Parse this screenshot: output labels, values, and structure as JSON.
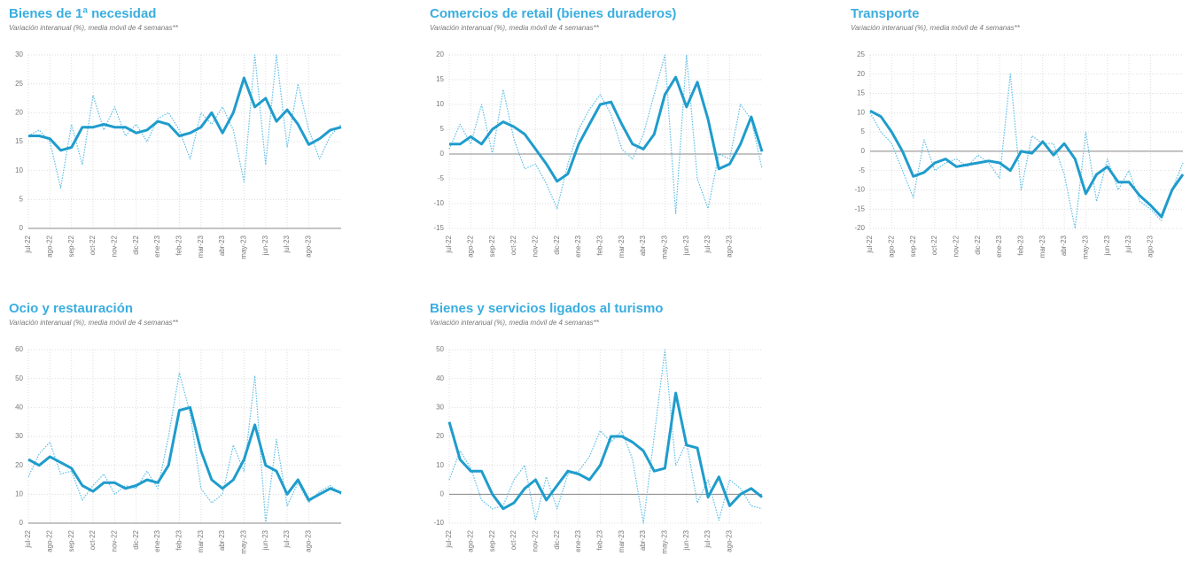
{
  "chart_data": [
    {
      "type": "line",
      "title": "Bienes de 1ª necesidad",
      "subtitle": "Variación interanual (%), media móvil de 4 semanas**",
      "categories": [
        "jul-22",
        null,
        "ago-22",
        null,
        "sep-22",
        null,
        "oct-22",
        null,
        "nov-22",
        null,
        "dic-22",
        null,
        "ene-23",
        null,
        "feb-23",
        null,
        "mar-23",
        null,
        "abr-23",
        null,
        "may-23",
        null,
        "jun-23",
        null,
        "jul-23",
        null,
        "ago-23",
        null,
        null,
        null
      ],
      "ylim": [
        0,
        30
      ],
      "yticks": [
        0,
        5,
        10,
        15,
        20,
        25,
        30
      ],
      "grid": true,
      "series": [
        {
          "color": "#5bbde6",
          "line_style": "dotted",
          "values": [
            16,
            17,
            15,
            7,
            18,
            11,
            23,
            17,
            21,
            16,
            18,
            15,
            19,
            20,
            17,
            12,
            20,
            18,
            21,
            17,
            8,
            30,
            11,
            30,
            14,
            25,
            17,
            12,
            16,
            18
          ]
        },
        {
          "color": "#1f9ccc",
          "line_style": "solid",
          "values": [
            16,
            16,
            15.5,
            13.5,
            14,
            17.5,
            17.5,
            18,
            17.5,
            17.5,
            16.5,
            17,
            18.5,
            18,
            16,
            16.5,
            17.5,
            20,
            16.5,
            20,
            26,
            21,
            22.5,
            18.5,
            20.5,
            18,
            14.5,
            15.5,
            17,
            17.5
          ]
        }
      ]
    },
    {
      "type": "line",
      "title": "Comercios de retail (bienes duraderos)",
      "subtitle": "Variación interanual (%), media móvil de 4 semanas**",
      "categories": [
        "jul-22",
        null,
        "ago-22",
        null,
        "sep-22",
        null,
        "oct-22",
        null,
        "nov-22",
        null,
        "dic-22",
        null,
        "ene-23",
        null,
        "feb-23",
        null,
        "mar-23",
        null,
        "abr-23",
        null,
        "may-23",
        null,
        "jun-23",
        null,
        "jul-23",
        null,
        "ago-23",
        null,
        null,
        null
      ],
      "ylim": [
        -15,
        20
      ],
      "yticks": [
        -15,
        -10,
        -5,
        0,
        5,
        10,
        15,
        20
      ],
      "grid": true,
      "series": [
        {
          "color": "#5bbde6",
          "line_style": "dotted",
          "values": [
            1,
            6,
            2,
            10,
            0,
            13,
            3,
            -3,
            -2,
            -6,
            -11,
            -2,
            5,
            9,
            12,
            8,
            1,
            -1,
            4,
            12,
            20,
            -12,
            20,
            -5,
            -11,
            0,
            -1,
            10,
            7,
            -3
          ]
        },
        {
          "color": "#1f9ccc",
          "line_style": "solid",
          "values": [
            2,
            2,
            3.5,
            2,
            5,
            6.5,
            5.5,
            4,
            1,
            -2,
            -5.5,
            -4,
            2,
            6,
            10,
            10.5,
            6,
            2,
            1,
            4,
            12,
            15.5,
            9.5,
            14.5,
            7,
            -3,
            -2,
            2,
            7.5,
            0.5
          ]
        }
      ]
    },
    {
      "type": "line",
      "title": "Transporte",
      "subtitle": "Variación interanual (%), media móvil de 4 semanas**",
      "categories": [
        "jul-22",
        null,
        "ago-22",
        null,
        "sep-22",
        null,
        "oct-22",
        null,
        "nov-22",
        null,
        "dic-22",
        null,
        "ene-23",
        null,
        "feb-23",
        null,
        "mar-23",
        null,
        "abr-23",
        null,
        "may-23",
        null,
        "jun-23",
        null,
        "jul-23",
        null,
        "ago-23",
        null,
        null,
        null
      ],
      "ylim": [
        -20,
        25
      ],
      "yticks": [
        -20,
        -15,
        -10,
        -5,
        0,
        5,
        10,
        15,
        20,
        25
      ],
      "grid": true,
      "series": [
        {
          "color": "#5bbde6",
          "line_style": "dotted",
          "values": [
            10,
            5,
            2,
            -5,
            -12,
            3,
            -5,
            -3,
            -2,
            -4,
            -1,
            -3,
            -7,
            20,
            -10,
            4,
            2,
            2,
            -6,
            -20,
            5,
            -13,
            -2,
            -10,
            -5,
            -13,
            -15,
            -18,
            -10,
            -3
          ]
        },
        {
          "color": "#1f9ccc",
          "line_style": "solid",
          "values": [
            10.5,
            9,
            5,
            0,
            -6.5,
            -5.5,
            -3,
            -2,
            -4,
            -3.5,
            -3,
            -2.5,
            -3,
            -5,
            0,
            -0.5,
            2.5,
            -1,
            2,
            -2,
            -11,
            -6,
            -4,
            -8,
            -8,
            -11.5,
            -14,
            -17,
            -10,
            -6
          ]
        }
      ]
    },
    {
      "type": "line",
      "title": "Ocio y restauración",
      "subtitle": "Variación interanual (%), media móvil de 4 semanas**",
      "categories": [
        "jul-22",
        null,
        "ago-22",
        null,
        "sep-22",
        null,
        "oct-22",
        null,
        "nov-22",
        null,
        "dic-22",
        null,
        "ene-23",
        null,
        "feb-23",
        null,
        "mar-23",
        null,
        "abr-23",
        null,
        "may-23",
        null,
        "jun-23",
        null,
        "jul-23",
        null,
        "ago-23",
        null,
        null,
        null
      ],
      "ylim": [
        0,
        60
      ],
      "yticks": [
        0,
        10,
        20,
        30,
        40,
        50,
        60
      ],
      "grid": true,
      "series": [
        {
          "color": "#5bbde6",
          "line_style": "dotted",
          "values": [
            16,
            24,
            28,
            17,
            18,
            8,
            13,
            17,
            10,
            13,
            12,
            18,
            12,
            30,
            52,
            38,
            12,
            7,
            10,
            27,
            18,
            51,
            0,
            29,
            6,
            14,
            7,
            11,
            13,
            10
          ]
        },
        {
          "color": "#1f9ccc",
          "line_style": "solid",
          "values": [
            22,
            20,
            23,
            21,
            19,
            13,
            11,
            14,
            14,
            12,
            13,
            15,
            14,
            20,
            39,
            40,
            25,
            15,
            12,
            15,
            22,
            34,
            20,
            18,
            10,
            15,
            8,
            10,
            12,
            10.5
          ]
        }
      ]
    },
    {
      "type": "line",
      "title": "Bienes y servicios ligados al turismo",
      "subtitle": "Variación interanual (%), media móvil de 4 semanas**",
      "categories": [
        "jul-22",
        null,
        "ago-22",
        null,
        "sep-22",
        null,
        "oct-22",
        null,
        "nov-22",
        null,
        "dic-22",
        null,
        "ene-23",
        null,
        "feb-23",
        null,
        "mar-23",
        null,
        "abr-23",
        null,
        "may-23",
        null,
        "jun-23",
        null,
        "jul-23",
        null,
        "ago-23",
        null,
        null,
        null
      ],
      "ylim": [
        -10,
        50
      ],
      "yticks": [
        -10,
        0,
        10,
        20,
        30,
        40,
        50
      ],
      "grid": true,
      "series": [
        {
          "color": "#5bbde6",
          "line_style": "dotted",
          "values": [
            5,
            15,
            9,
            -2,
            -5,
            -4,
            5,
            10,
            -9,
            6,
            -5,
            7,
            8,
            13,
            22,
            18,
            22,
            12,
            -10,
            20,
            50,
            10,
            18,
            -3,
            5,
            -9,
            5,
            2,
            -4,
            -5
          ]
        },
        {
          "color": "#1f9ccc",
          "line_style": "solid",
          "values": [
            25,
            12,
            8,
            8,
            0,
            -5,
            -3,
            2,
            5,
            -2,
            3,
            8,
            7,
            5,
            10,
            20,
            20,
            18,
            15,
            8,
            9,
            35,
            17,
            16,
            -1,
            6,
            -4,
            0,
            2,
            -1
          ]
        }
      ]
    }
  ]
}
